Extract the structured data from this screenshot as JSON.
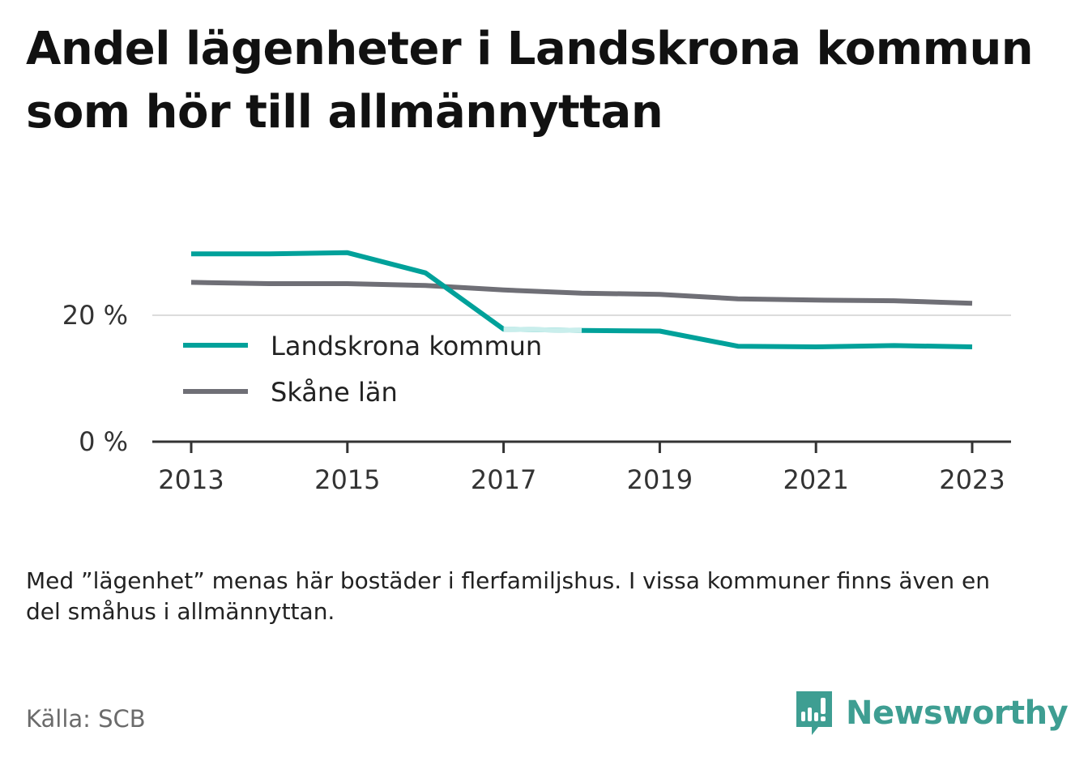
{
  "title": "Andel lägenheter i Landskrona kommun som hör till allmännyttan",
  "note": "Med ”lägenhet” menas här bostäder i flerfamiljshus. I vissa kommuner finns även en del småhus i allmännyttan.",
  "source": "Källa: SCB",
  "brand": {
    "name": "Newsworthy",
    "icon": "newsworthy-logo-icon",
    "color": "#3e9e92"
  },
  "chart_data": {
    "type": "line",
    "x": [
      2013,
      2014,
      2015,
      2016,
      2017,
      2018,
      2019,
      2020,
      2021,
      2022,
      2023
    ],
    "x_ticks": [
      "2013",
      "2015",
      "2017",
      "2019",
      "2021",
      "2023"
    ],
    "y_ticks": [
      {
        "value": 0,
        "label": "0 %"
      },
      {
        "value": 20,
        "label": "20 %"
      }
    ],
    "ylim": [
      0,
      32
    ],
    "xlim": [
      2012.5,
      2023.5
    ],
    "grid": "horizontal at 20 %",
    "legend": "inside plot, left",
    "series": [
      {
        "name": "Landskrona kommun",
        "color": "#00a19a",
        "highlight_color": "#c9eeec",
        "highlight_range": [
          2017,
          2018
        ],
        "values": [
          29.7,
          29.7,
          29.9,
          26.7,
          17.8,
          17.6,
          17.5,
          15.1,
          15.0,
          15.2,
          15.0
        ]
      },
      {
        "name": "Skåne län",
        "color": "#6f6f76",
        "values": [
          25.2,
          25.0,
          25.0,
          24.7,
          24.0,
          23.5,
          23.3,
          22.6,
          22.4,
          22.3,
          21.9
        ]
      }
    ]
  }
}
